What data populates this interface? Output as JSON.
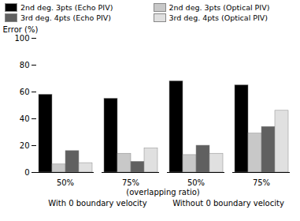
{
  "chart_data": {
    "type": "bar",
    "categories": [
      "50%",
      "75%",
      "50%",
      "75%"
    ],
    "series": [
      {
        "name": "2nd deg. 3pts (Echo PIV)",
        "color": "#000000",
        "values": [
          58,
          55,
          68,
          65
        ]
      },
      {
        "name": "2nd deg. 3pts (Optical PIV)",
        "color": "#c8c8c8",
        "values": [
          6,
          14,
          13,
          29
        ]
      },
      {
        "name": "3rd deg. 4pts (Echo PIV)",
        "color": "#606060",
        "values": [
          16,
          8,
          20,
          34
        ]
      },
      {
        "name": "3rd deg. 4pts (Optical PIV)",
        "color": "#e0e0e0",
        "values": [
          7,
          18,
          14,
          46
        ]
      }
    ],
    "xlabel": "(overlapping ratio)",
    "annotations": [
      "With 0 boundary velocity",
      "Without 0 boundary velocity"
    ],
    "ylabel": "Error (%)",
    "ylim": [
      0,
      100
    ],
    "yticks": [
      0,
      20,
      40,
      60,
      80,
      100
    ],
    "grid": false,
    "legend": "upper left"
  }
}
